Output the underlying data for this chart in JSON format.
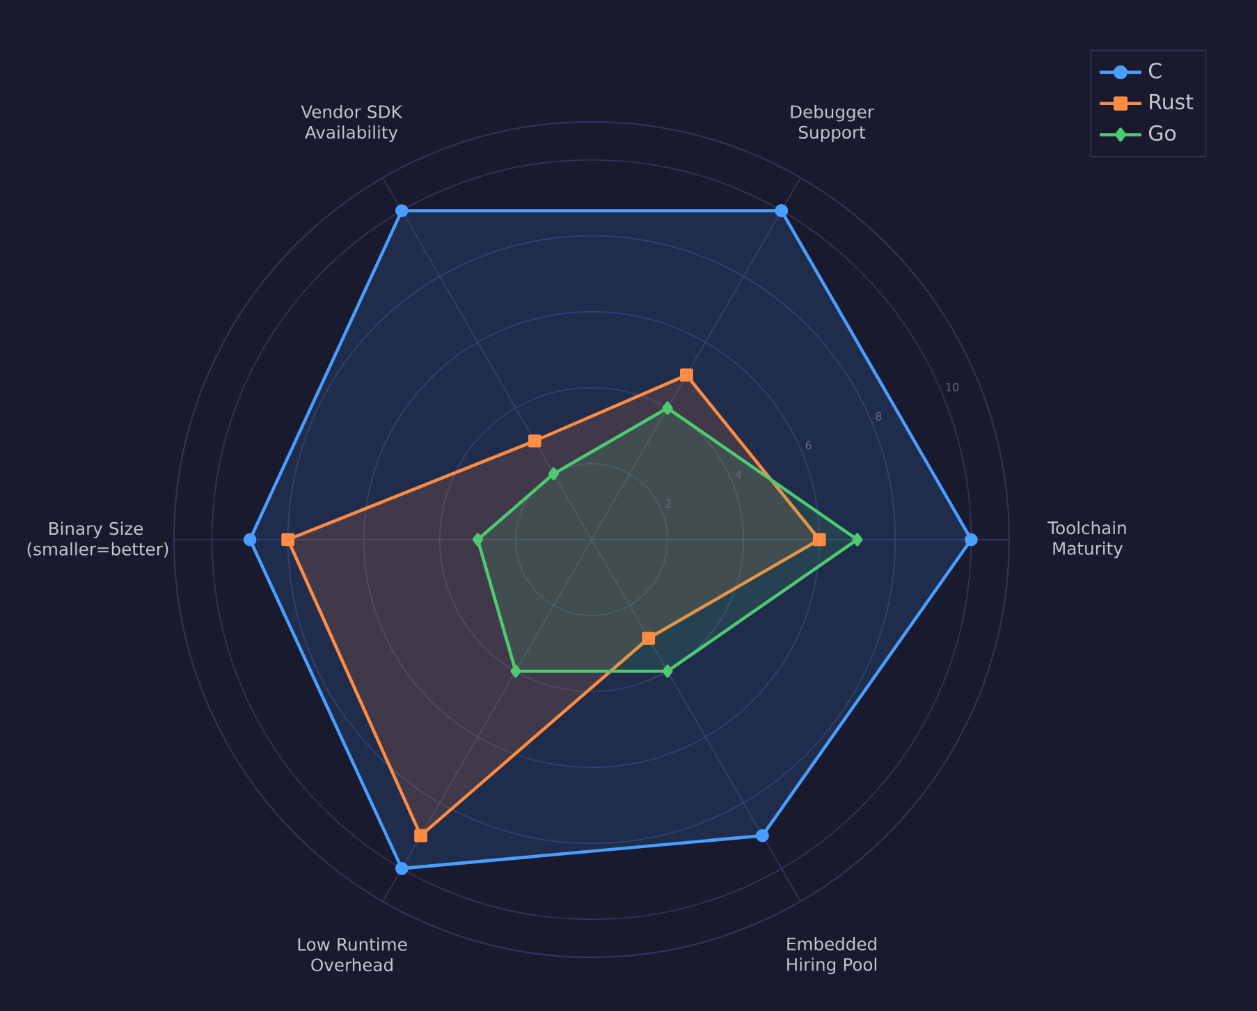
{
  "chart_data": {
    "type": "radar",
    "categories": [
      "Debugger Support",
      "Toolchain Maturity",
      "Embedded Hiring Pool",
      "Low Runtime Overhead",
      "Binary Size (smaller=better)",
      "Vendor SDK Availability"
    ],
    "series": [
      {
        "name": "C",
        "color": "#4a9eff",
        "marker": "circle",
        "values": [
          10,
          10,
          9,
          10,
          9,
          10
        ]
      },
      {
        "name": "Rust",
        "color": "#ff8c42",
        "marker": "square",
        "values": [
          5,
          6,
          3,
          9,
          8,
          3
        ]
      },
      {
        "name": "Go",
        "color": "#4ecb71",
        "marker": "diamond",
        "values": [
          4,
          7,
          4,
          4,
          3,
          2
        ]
      }
    ],
    "ylim": [
      0,
      11
    ],
    "yticks": [
      2,
      4,
      6,
      8,
      10
    ],
    "grid": true,
    "legend": "top right"
  }
}
